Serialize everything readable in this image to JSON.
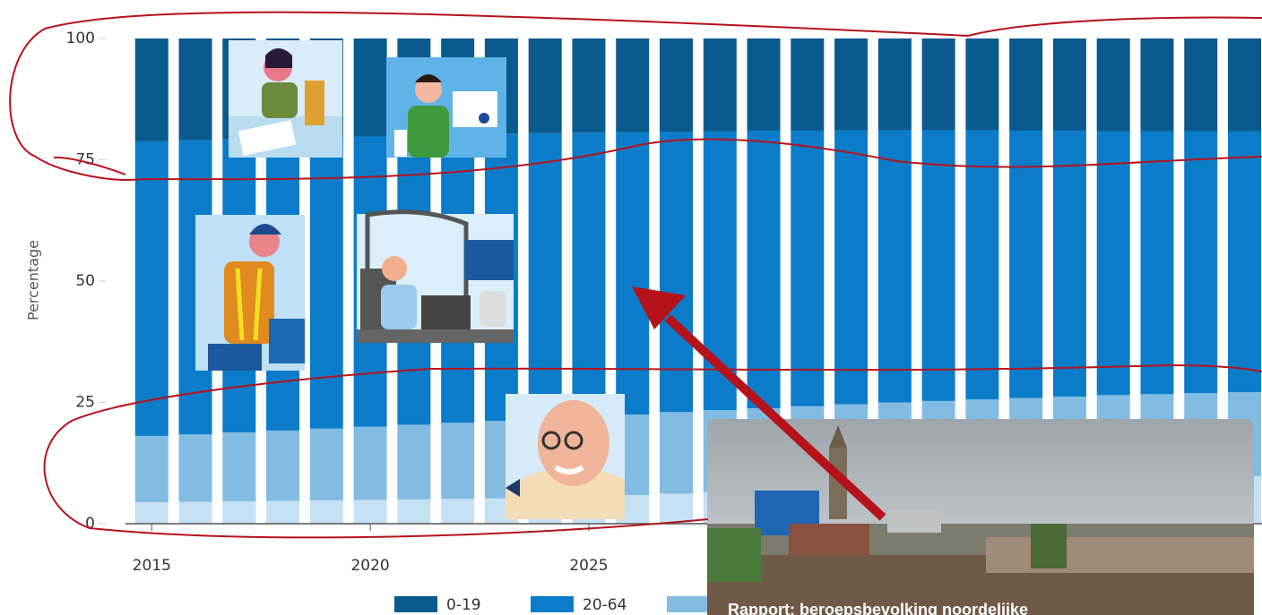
{
  "chart_data": {
    "type": "stacked_bar",
    "y_label": "Percentage",
    "x": [
      2015,
      2016,
      2017,
      2018,
      2019,
      2020,
      2021,
      2022,
      2023,
      2024,
      2025,
      2026,
      2027,
      2028,
      2029,
      2030,
      2031,
      2032,
      2033,
      2034,
      2035,
      2036,
      2037,
      2038,
      2039,
      2040
    ],
    "xlim": [
      2014.4,
      2040.4
    ],
    "xticks": [
      2015,
      2020,
      2025
    ],
    "ylim": [
      0,
      100
    ],
    "yticks": [
      0,
      25,
      50,
      75,
      100
    ],
    "series": [
      {
        "name": "0-19",
        "color": "#0b5a8e",
        "values": [
          21.2,
          21.0,
          20.8,
          20.6,
          20.4,
          20.2,
          20.0,
          19.8,
          19.6,
          19.5,
          19.4,
          19.3,
          19.2,
          19.1,
          19.0,
          19.0,
          18.9,
          18.9,
          18.9,
          18.9,
          19.0,
          19.0,
          19.1,
          19.1,
          19.1,
          19.1
        ]
      },
      {
        "name": "20-64",
        "color": "#0b7cc9",
        "values": [
          60.7,
          60.6,
          60.4,
          60.2,
          60.0,
          59.8,
          59.6,
          59.4,
          59.2,
          58.9,
          58.6,
          58.2,
          57.8,
          57.5,
          57.2,
          56.8,
          56.5,
          56.1,
          55.8,
          55.5,
          55.1,
          54.8,
          54.4,
          54.2,
          54.0,
          53.8
        ]
      },
      {
        "color": "#82bce3",
        "values": [
          13.7,
          13.9,
          14.2,
          14.5,
          14.8,
          15.1,
          15.4,
          15.7,
          16.0,
          16.2,
          16.4,
          16.6,
          16.8,
          16.9,
          17.0,
          17.1,
          17.2,
          17.3,
          17.3,
          17.3,
          17.3,
          17.3,
          17.3,
          17.3,
          17.3,
          17.3
        ]
      },
      {
        "color": "#c7e1f4",
        "values": [
          4.4,
          4.5,
          4.6,
          4.7,
          4.8,
          4.9,
          5.0,
          5.1,
          5.2,
          5.4,
          5.6,
          5.9,
          6.2,
          6.5,
          6.8,
          7.1,
          7.4,
          7.7,
          8.0,
          8.3,
          8.6,
          8.9,
          9.2,
          9.4,
          9.6,
          9.8
        ]
      }
    ]
  },
  "card": {
    "title": "Rapport: beroepsbevolking noordelijke"
  }
}
